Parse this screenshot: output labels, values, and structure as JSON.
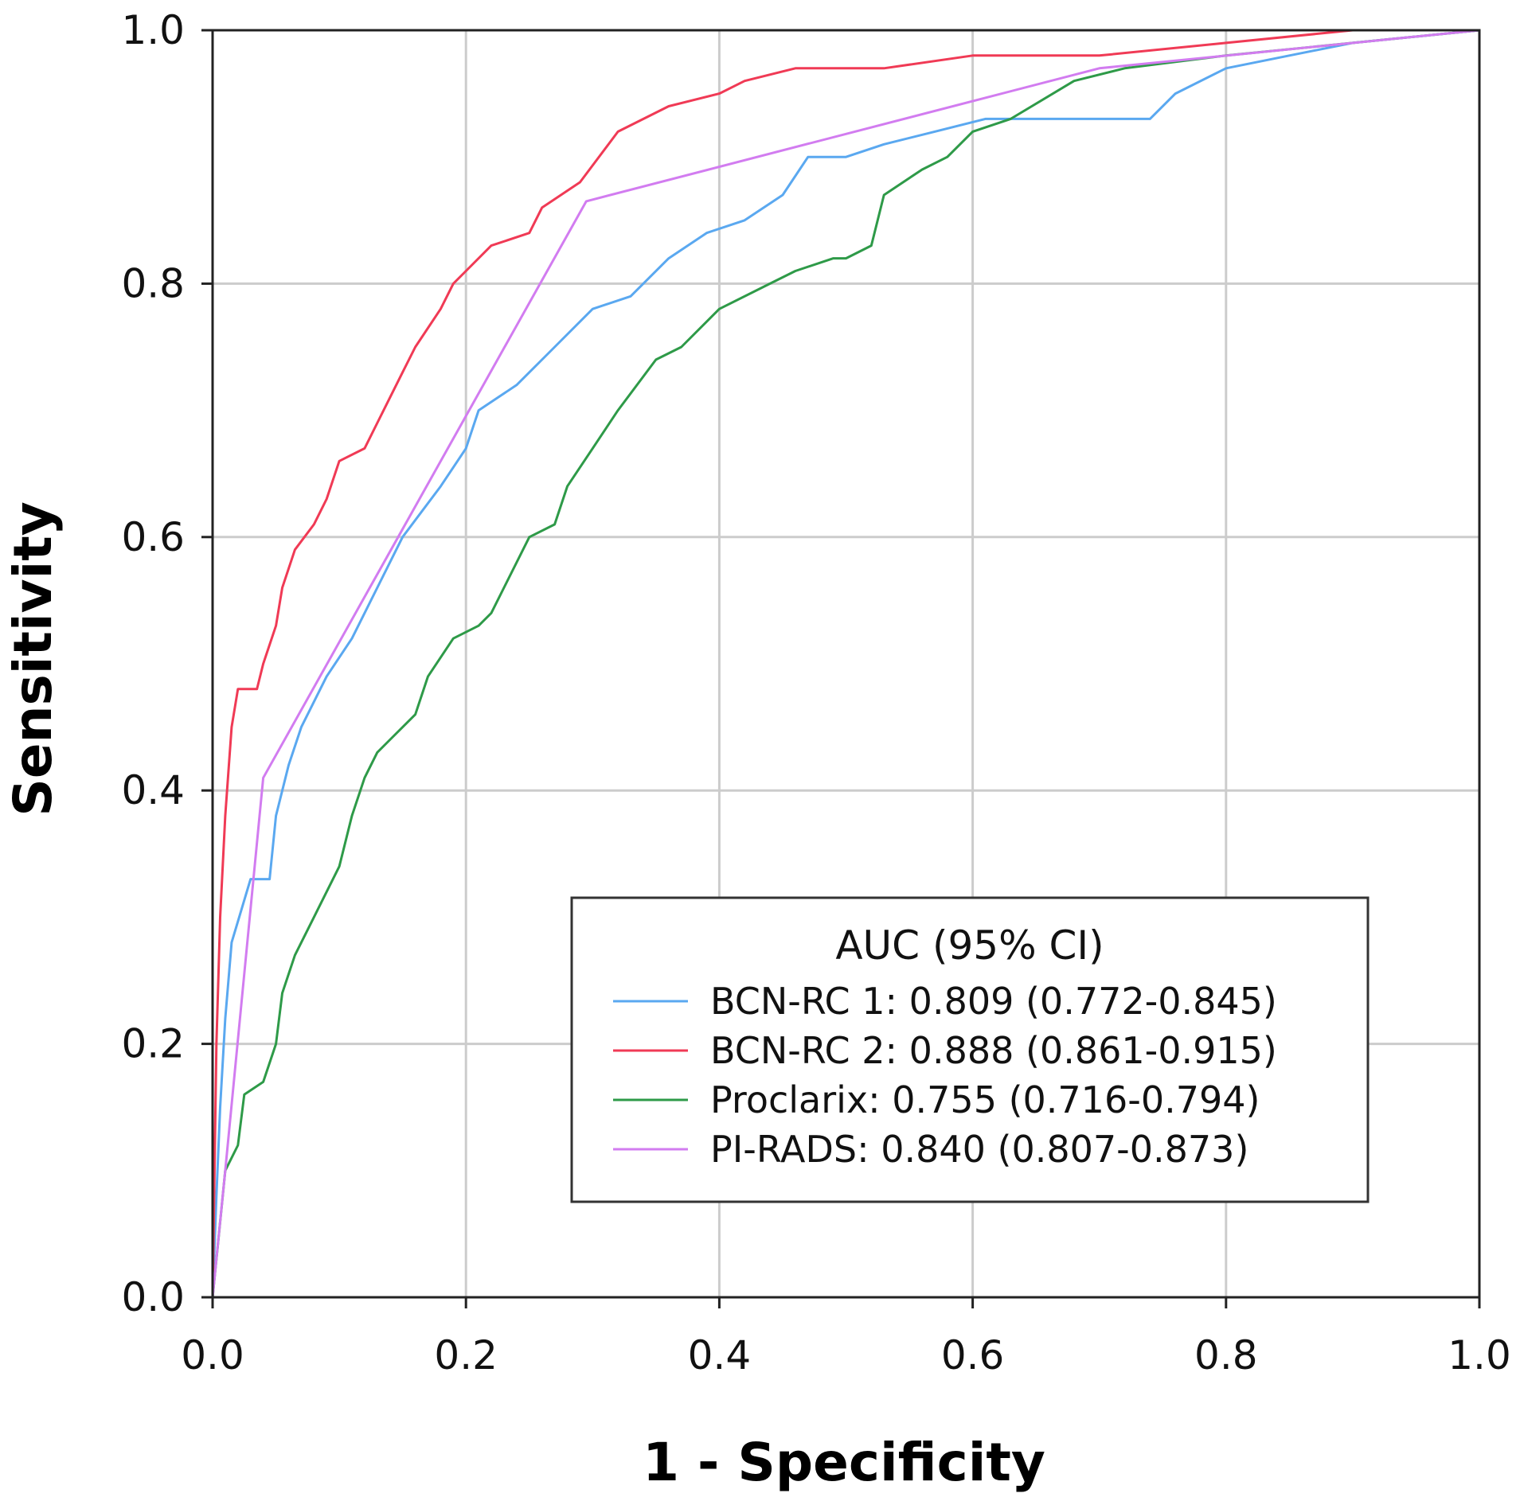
{
  "chart_data": {
    "type": "line",
    "title": "",
    "xlabel": "1 - Specificity",
    "ylabel": "Sensitivity",
    "xlim": [
      0,
      1
    ],
    "ylim": [
      0,
      1
    ],
    "grid": true,
    "x_ticks": [
      "0.0",
      "0.2",
      "0.4",
      "0.6",
      "0.8",
      "1.0"
    ],
    "y_ticks": [
      "0.0",
      "0.2",
      "0.4",
      "0.6",
      "0.8",
      "1.0"
    ],
    "legend": {
      "title": "AUC (95% CI)",
      "placement": "lower-right"
    },
    "series": [
      {
        "name": "BCN-RC 1: 0.809 (0.772-0.845)",
        "color": "#5aa8f0",
        "points": [
          [
            0,
            0
          ],
          [
            0.003,
            0.08
          ],
          [
            0.006,
            0.15
          ],
          [
            0.01,
            0.22
          ],
          [
            0.015,
            0.28
          ],
          [
            0.03,
            0.33
          ],
          [
            0.045,
            0.33
          ],
          [
            0.05,
            0.38
          ],
          [
            0.06,
            0.42
          ],
          [
            0.07,
            0.45
          ],
          [
            0.09,
            0.49
          ],
          [
            0.11,
            0.52
          ],
          [
            0.13,
            0.56
          ],
          [
            0.15,
            0.6
          ],
          [
            0.18,
            0.64
          ],
          [
            0.2,
            0.67
          ],
          [
            0.21,
            0.7
          ],
          [
            0.24,
            0.72
          ],
          [
            0.25,
            0.73
          ],
          [
            0.27,
            0.75
          ],
          [
            0.3,
            0.78
          ],
          [
            0.33,
            0.79
          ],
          [
            0.34,
            0.8
          ],
          [
            0.36,
            0.82
          ],
          [
            0.39,
            0.84
          ],
          [
            0.42,
            0.85
          ],
          [
            0.45,
            0.87
          ],
          [
            0.47,
            0.9
          ],
          [
            0.5,
            0.9
          ],
          [
            0.53,
            0.91
          ],
          [
            0.57,
            0.92
          ],
          [
            0.61,
            0.93
          ],
          [
            0.65,
            0.93
          ],
          [
            0.7,
            0.93
          ],
          [
            0.74,
            0.93
          ],
          [
            0.76,
            0.95
          ],
          [
            0.8,
            0.97
          ],
          [
            0.85,
            0.98
          ],
          [
            0.9,
            0.99
          ],
          [
            1,
            1
          ]
        ]
      },
      {
        "name": "BCN-RC 2: 0.888 (0.861-0.915)",
        "color": "#f03a55",
        "points": [
          [
            0,
            0
          ],
          [
            0.003,
            0.2
          ],
          [
            0.006,
            0.3
          ],
          [
            0.01,
            0.38
          ],
          [
            0.015,
            0.45
          ],
          [
            0.02,
            0.48
          ],
          [
            0.035,
            0.48
          ],
          [
            0.04,
            0.5
          ],
          [
            0.05,
            0.53
          ],
          [
            0.055,
            0.56
          ],
          [
            0.065,
            0.59
          ],
          [
            0.08,
            0.61
          ],
          [
            0.09,
            0.63
          ],
          [
            0.1,
            0.66
          ],
          [
            0.12,
            0.67
          ],
          [
            0.13,
            0.69
          ],
          [
            0.15,
            0.73
          ],
          [
            0.16,
            0.75
          ],
          [
            0.18,
            0.78
          ],
          [
            0.19,
            0.8
          ],
          [
            0.2,
            0.81
          ],
          [
            0.22,
            0.83
          ],
          [
            0.25,
            0.84
          ],
          [
            0.26,
            0.86
          ],
          [
            0.29,
            0.88
          ],
          [
            0.32,
            0.92
          ],
          [
            0.36,
            0.94
          ],
          [
            0.4,
            0.95
          ],
          [
            0.42,
            0.96
          ],
          [
            0.46,
            0.97
          ],
          [
            0.53,
            0.97
          ],
          [
            0.6,
            0.98
          ],
          [
            0.7,
            0.98
          ],
          [
            0.8,
            0.99
          ],
          [
            0.9,
            1.0
          ],
          [
            1,
            1
          ]
        ]
      },
      {
        "name": "Proclarix: 0.755 (0.716-0.794)",
        "color": "#2e9a48",
        "points": [
          [
            0,
            0
          ],
          [
            0.005,
            0.05
          ],
          [
            0.01,
            0.1
          ],
          [
            0.02,
            0.12
          ],
          [
            0.025,
            0.16
          ],
          [
            0.04,
            0.17
          ],
          [
            0.05,
            0.2
          ],
          [
            0.055,
            0.24
          ],
          [
            0.065,
            0.27
          ],
          [
            0.08,
            0.3
          ],
          [
            0.1,
            0.34
          ],
          [
            0.11,
            0.38
          ],
          [
            0.12,
            0.41
          ],
          [
            0.13,
            0.43
          ],
          [
            0.14,
            0.44
          ],
          [
            0.16,
            0.46
          ],
          [
            0.17,
            0.49
          ],
          [
            0.19,
            0.52
          ],
          [
            0.21,
            0.53
          ],
          [
            0.22,
            0.54
          ],
          [
            0.23,
            0.56
          ],
          [
            0.25,
            0.6
          ],
          [
            0.27,
            0.61
          ],
          [
            0.28,
            0.64
          ],
          [
            0.3,
            0.67
          ],
          [
            0.32,
            0.7
          ],
          [
            0.35,
            0.74
          ],
          [
            0.37,
            0.75
          ],
          [
            0.4,
            0.78
          ],
          [
            0.44,
            0.8
          ],
          [
            0.46,
            0.81
          ],
          [
            0.49,
            0.82
          ],
          [
            0.5,
            0.82
          ],
          [
            0.52,
            0.83
          ],
          [
            0.53,
            0.87
          ],
          [
            0.56,
            0.89
          ],
          [
            0.58,
            0.9
          ],
          [
            0.6,
            0.92
          ],
          [
            0.63,
            0.93
          ],
          [
            0.68,
            0.96
          ],
          [
            0.72,
            0.97
          ],
          [
            0.8,
            0.98
          ],
          [
            0.9,
            0.99
          ],
          [
            1,
            1
          ]
        ]
      },
      {
        "name": "PI-RADS: 0.840 (0.807-0.873)",
        "color": "#d27cf0",
        "points": [
          [
            0,
            0
          ],
          [
            0.01,
            0.1
          ],
          [
            0.04,
            0.41
          ],
          [
            0.295,
            0.865
          ],
          [
            0.7,
            0.97
          ],
          [
            1,
            1
          ]
        ]
      }
    ]
  }
}
